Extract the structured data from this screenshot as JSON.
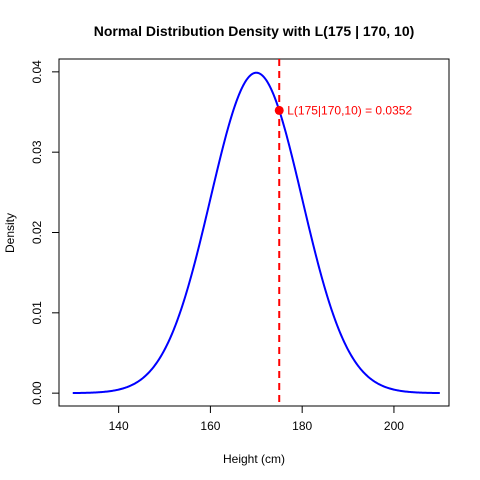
{
  "chart_data": {
    "type": "line",
    "title": "Normal Distribution Density with L(175 | 170, 10)",
    "xlabel": "Height (cm)",
    "ylabel": "Density",
    "xlim": [
      127,
      212
    ],
    "ylim": [
      -0.0016,
      0.0416
    ],
    "x_ticks": [
      140,
      160,
      180,
      200
    ],
    "x_tick_labels": [
      "140",
      "160",
      "180",
      "200"
    ],
    "y_ticks": [
      0.0,
      0.01,
      0.02,
      0.03,
      0.04
    ],
    "y_tick_labels": [
      "0.00",
      "0.01",
      "0.02",
      "0.03",
      "0.04"
    ],
    "grid": false,
    "series": [
      {
        "distribution": "normal",
        "mean": 170,
        "sd": 10,
        "x_range": [
          130,
          210
        ],
        "color": "#0000ff"
      }
    ],
    "vline": {
      "x": 175,
      "color": "#ff0000",
      "style": "dashed"
    },
    "point": {
      "x": 175,
      "y": 0.0352,
      "color": "#ff0000"
    },
    "annotation": {
      "text": "L(175|170,10) = 0.0352",
      "x": 175,
      "y": 0.0352,
      "color": "#ff0000"
    }
  }
}
